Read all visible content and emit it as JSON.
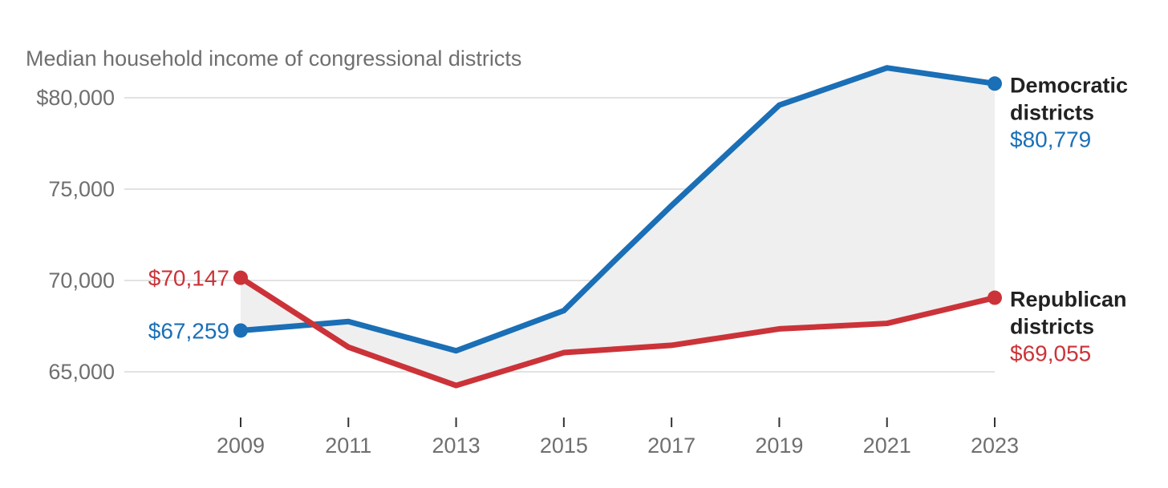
{
  "colors": {
    "democratic": "#1a6fb6",
    "republican": "#cb3339",
    "gap_fill": "#efefef",
    "axis_text": "#6f6f6f",
    "label_text": "#222222"
  },
  "chart_data": {
    "type": "line",
    "title": "Median household income of congressional districts",
    "xlabel": "",
    "ylabel": "",
    "x": [
      2009,
      2010,
      2011,
      2012,
      2013,
      2014,
      2015,
      2016,
      2017,
      2018,
      2019,
      2020,
      2021,
      2022,
      2023
    ],
    "x_ticks": [
      2009,
      2011,
      2013,
      2015,
      2017,
      2019,
      2021,
      2023
    ],
    "x_tick_labels": [
      "2009",
      "2011",
      "2013",
      "2015",
      "2017",
      "2019",
      "2021",
      "2023"
    ],
    "ylim": [
      63200,
      83600
    ],
    "y_ticks": [
      65000,
      70000,
      75000,
      80000
    ],
    "y_tick_labels": [
      "65,000",
      "70,000",
      "75,000",
      "$80,000"
    ],
    "grid": true,
    "area_between_series": true,
    "series": [
      {
        "name": "Democratic districts",
        "name_lines": [
          "Democratic",
          "districts"
        ],
        "color_key": "democratic",
        "values": [
          67259,
          67500,
          67750,
          66950,
          66150,
          67250,
          68350,
          71250,
          74100,
          76850,
          79600,
          80620,
          81640,
          81210,
          80779
        ],
        "start_label": "$67,259",
        "end_label": "$80,779"
      },
      {
        "name": "Republican districts",
        "name_lines": [
          "Republican",
          "districts"
        ],
        "color_key": "republican",
        "values": [
          70147,
          68250,
          66350,
          65300,
          64250,
          65150,
          66050,
          66250,
          66450,
          66900,
          67350,
          67500,
          67650,
          68350,
          69055
        ],
        "start_label": "$70,147",
        "end_label": "$69,055"
      }
    ]
  }
}
